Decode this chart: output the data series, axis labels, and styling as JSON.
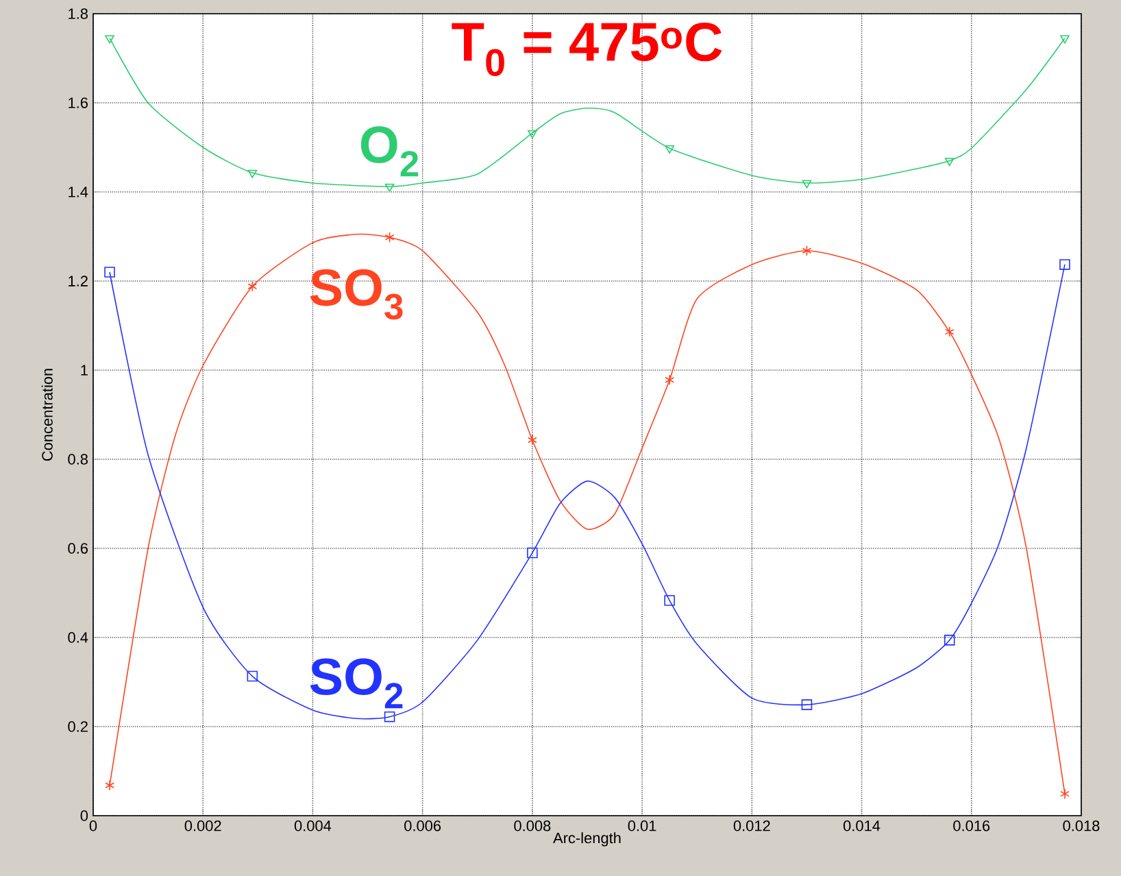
{
  "chart_data": {
    "type": "line",
    "xlabel": "Arc-length",
    "ylabel": "Concentration",
    "annotations": [
      "T$_{0}$ = 475$^{o}$C"
    ],
    "xlim": [
      0,
      0.018
    ],
    "xticks": [
      0,
      0.002,
      0.004,
      0.006,
      0.008,
      0.01,
      0.012,
      0.014,
      0.016,
      0.018
    ],
    "ylim": [
      0,
      1.8
    ],
    "yticks": [
      0,
      0.2,
      0.4,
      0.6,
      0.8,
      1,
      1.2,
      1.4,
      1.6,
      1.8
    ],
    "grid": true,
    "series": [
      {
        "name": "O$_{2}$",
        "color": "#2ecc71",
        "x": [
          0.0003,
          0.001,
          0.002,
          0.0029,
          0.004,
          0.0054,
          0.006,
          0.007,
          0.008,
          0.0085,
          0.009,
          0.0095,
          0.0105,
          0.012,
          0.013,
          0.014,
          0.015,
          0.0156,
          0.016,
          0.017,
          0.0177
        ],
        "values": [
          1.745,
          1.6,
          1.5,
          1.443,
          1.42,
          1.412,
          1.42,
          1.44,
          1.532,
          1.575,
          1.588,
          1.578,
          1.498,
          1.437,
          1.42,
          1.428,
          1.452,
          1.47,
          1.498,
          1.63,
          1.745
        ]
      },
      {
        "type": "scatter",
        "marker": "triangle",
        "color": "#2ecc71",
        "x": [
          0.0003,
          0.0029,
          0.0054,
          0.008,
          0.0105,
          0.013,
          0.0156,
          0.0177
        ],
        "values": [
          1.745,
          1.443,
          1.412,
          1.532,
          1.498,
          1.42,
          1.47,
          1.745
        ]
      },
      {
        "name": "SO$_{3}$",
        "color": "#ff4422",
        "x": [
          0.0003,
          0.001,
          0.0015,
          0.002,
          0.0029,
          0.004,
          0.0048,
          0.0054,
          0.006,
          0.007,
          0.0075,
          0.008,
          0.0085,
          0.009,
          0.0095,
          0.01,
          0.0105,
          0.011,
          0.012,
          0.013,
          0.014,
          0.015,
          0.0156,
          0.016,
          0.0165,
          0.017,
          0.0177
        ],
        "values": [
          0.068,
          0.6,
          0.855,
          1.01,
          1.188,
          1.286,
          1.305,
          1.298,
          1.268,
          1.13,
          1.01,
          0.843,
          0.708,
          0.643,
          0.677,
          0.825,
          0.978,
          1.16,
          1.237,
          1.268,
          1.24,
          1.18,
          1.086,
          0.99,
          0.846,
          0.6,
          0.049
        ]
      },
      {
        "type": "scatter",
        "marker": "cross",
        "color": "#ff4422",
        "x": [
          0.0003,
          0.0029,
          0.0054,
          0.008,
          0.0105,
          0.013,
          0.0156,
          0.0177
        ],
        "values": [
          0.068,
          1.188,
          1.298,
          0.843,
          0.978,
          1.268,
          1.086,
          0.049
        ]
      },
      {
        "name": "SO$_{2}$",
        "color": "#2233ff",
        "x": [
          0.0003,
          0.001,
          0.002,
          0.0029,
          0.004,
          0.0048,
          0.0054,
          0.006,
          0.007,
          0.008,
          0.0085,
          0.009,
          0.0095,
          0.01,
          0.0105,
          0.011,
          0.012,
          0.013,
          0.014,
          0.015,
          0.0156,
          0.016,
          0.0165,
          0.017,
          0.0177
        ],
        "values": [
          1.22,
          0.81,
          0.468,
          0.313,
          0.237,
          0.218,
          0.222,
          0.255,
          0.394,
          0.59,
          0.7,
          0.751,
          0.714,
          0.61,
          0.483,
          0.385,
          0.264,
          0.249,
          0.274,
          0.332,
          0.394,
          0.477,
          0.61,
          0.825,
          1.237
        ]
      },
      {
        "type": "scatter",
        "marker": "square",
        "color": "#2233ff",
        "x": [
          0.0003,
          0.0029,
          0.0054,
          0.008,
          0.0105,
          0.013,
          0.0156,
          0.0177
        ],
        "values": [
          1.22,
          0.313,
          0.222,
          0.59,
          0.483,
          0.249,
          0.394,
          1.237
        ]
      }
    ]
  }
}
